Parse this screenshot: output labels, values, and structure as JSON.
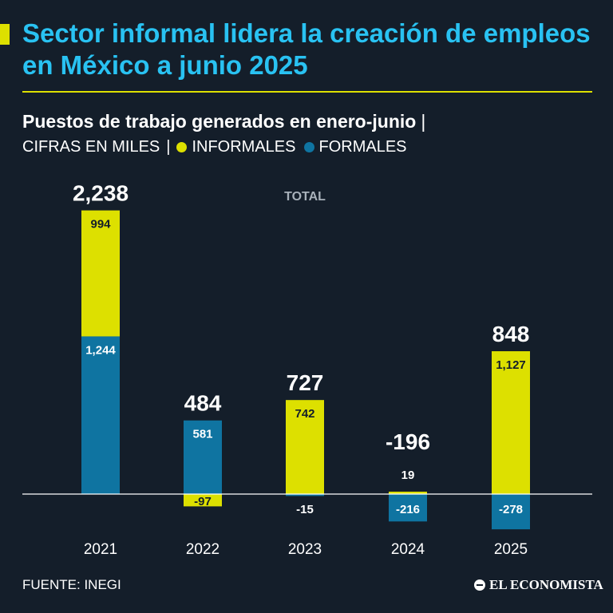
{
  "header": {
    "title": "Sector informal lidera la creación de empleos en México a junio 2025",
    "subtitle": "Puestos de trabajo generados en enero-junio",
    "separator": "|",
    "units": "CIFRAS EN MILES",
    "legend_informal": "INFORMALES",
    "legend_formal": "FORMALES"
  },
  "colors": {
    "background": "#141e2a",
    "accent": "#dde000",
    "title": "#29c2f2",
    "informal": "#dde000",
    "formal": "#0f74a1",
    "text": "#ffffff",
    "total_label": "#a8b1ba"
  },
  "chart_data": {
    "type": "bar",
    "stacked": true,
    "title": "Puestos de trabajo generados en enero-junio",
    "units": "miles",
    "total_label": "TOTAL",
    "categories": [
      "2021",
      "2022",
      "2023",
      "2024",
      "2025"
    ],
    "series": [
      {
        "name": "FORMALES",
        "values": [
          1244,
          581,
          -15,
          -216,
          -278
        ],
        "labels": [
          "1,244",
          "581",
          "-15",
          "-216",
          "-278"
        ]
      },
      {
        "name": "INFORMALES",
        "values": [
          994,
          -97,
          742,
          19,
          1127
        ],
        "labels": [
          "994",
          "-97",
          "742",
          "19",
          "1,127"
        ]
      }
    ],
    "totals": [
      2238,
      484,
      727,
      -196,
      848
    ],
    "total_labels": [
      "2,238",
      "484",
      "727",
      "-196",
      "848"
    ]
  },
  "footer": {
    "source": "FUENTE: INEGI",
    "brand": "EL ECONOMISTA"
  }
}
